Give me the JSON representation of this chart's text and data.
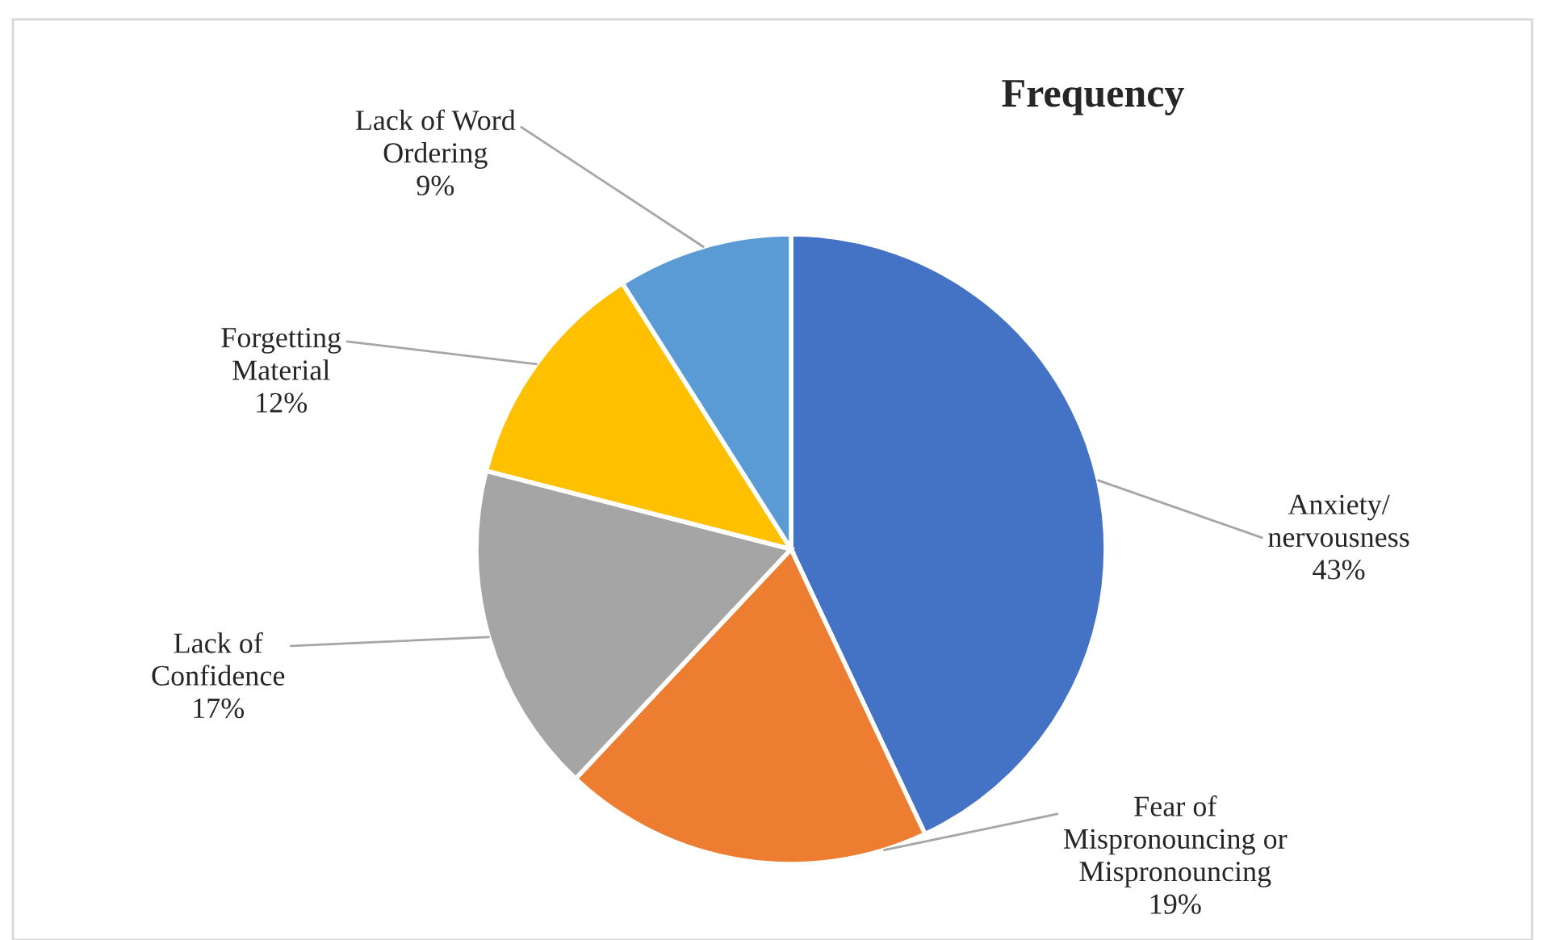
{
  "chart_data": {
    "type": "pie",
    "title": "Frequency",
    "categories": [
      "Anxiety/\nnervousness",
      "Fear of\nMispronouncing or\nMispronouncing",
      "Lack of\nConfidence",
      "Forgetting\nMaterial",
      "Lack of Word\nOrdering"
    ],
    "values": [
      43,
      19,
      17,
      12,
      9
    ],
    "colors": [
      "#4472c4",
      "#ed7d31",
      "#a5a5a5",
      "#ffc000",
      "#5b9bd5"
    ],
    "value_labels": [
      "43%",
      "19%",
      "17%",
      "12%",
      "9%"
    ]
  }
}
